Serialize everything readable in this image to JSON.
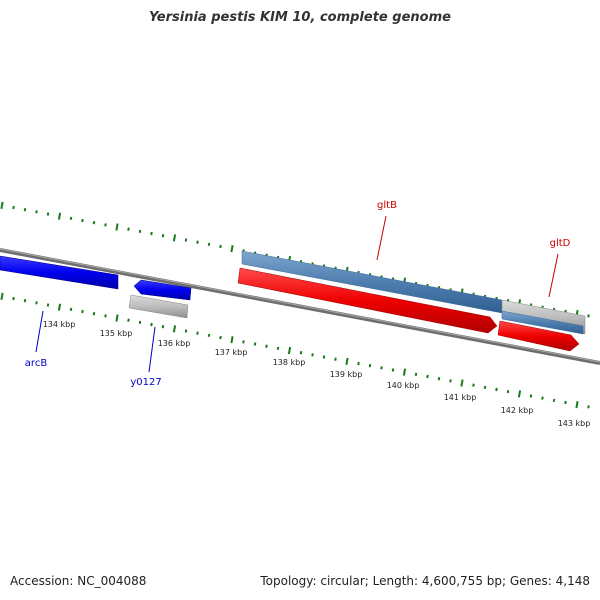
{
  "title": "Yersinia pestis KIM 10, complete genome",
  "footer": {
    "accession": "Accession: NC_004088",
    "summary": "Topology: circular; Length: 4,600,755 bp; Genes: 4,148"
  },
  "scale": {
    "tick_labels": [
      "134 kbp",
      "135 kbp",
      "136 kbp",
      "137 kbp",
      "138 kbp",
      "139 kbp",
      "140 kbp",
      "141 kbp",
      "142 kbp",
      "143 kbp"
    ]
  },
  "genes": [
    {
      "name": "arcB",
      "label_color": "#0000cc"
    },
    {
      "name": "y0127",
      "label_color": "#0000cc"
    },
    {
      "name": "gltB",
      "label_color": "#cc0000"
    },
    {
      "name": "gltD",
      "label_color": "#cc0000"
    }
  ],
  "colors": {
    "backbone": "#7f7f7f",
    "ticks": "#1a7a1a",
    "forward_cds": "#0000ee",
    "reverse_cds": "#ee0000",
    "feature_blue": "#4f7fb0",
    "feature_gray": "#b8b8b8"
  }
}
